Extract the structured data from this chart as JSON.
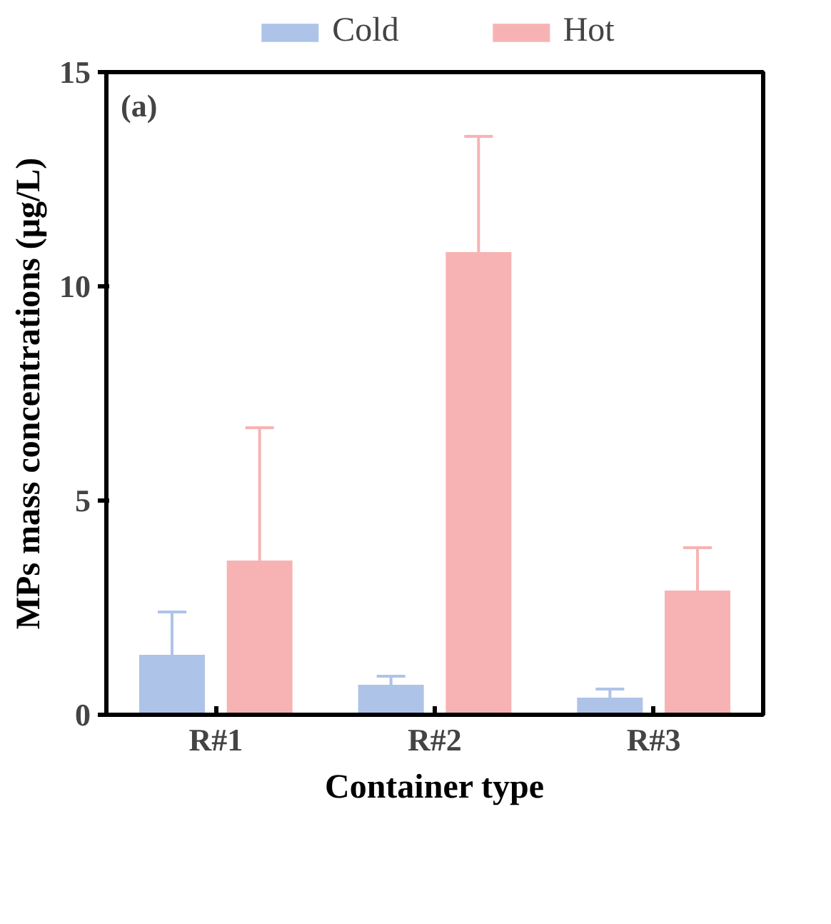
{
  "chart_data": {
    "type": "bar",
    "ylabel": "MPs mass concentrations (μg/L)",
    "xlabel": "Container type",
    "categories": [
      "R#1",
      "R#2",
      "R#3"
    ],
    "series": [
      {
        "name": "Cold",
        "color": "#aec3e8",
        "values": [
          1.4,
          0.7,
          0.4
        ],
        "errors": [
          1.0,
          0.2,
          0.2
        ]
      },
      {
        "name": "Hot",
        "color": "#f7b3b3",
        "values": [
          3.6,
          10.8,
          2.9
        ],
        "errors": [
          3.1,
          2.7,
          1.0
        ]
      }
    ],
    "annotations": [
      "(a)"
    ],
    "ylim": [
      0,
      15
    ],
    "yticks": [
      0,
      5,
      10,
      15
    ],
    "grid": false,
    "legend": "top"
  }
}
